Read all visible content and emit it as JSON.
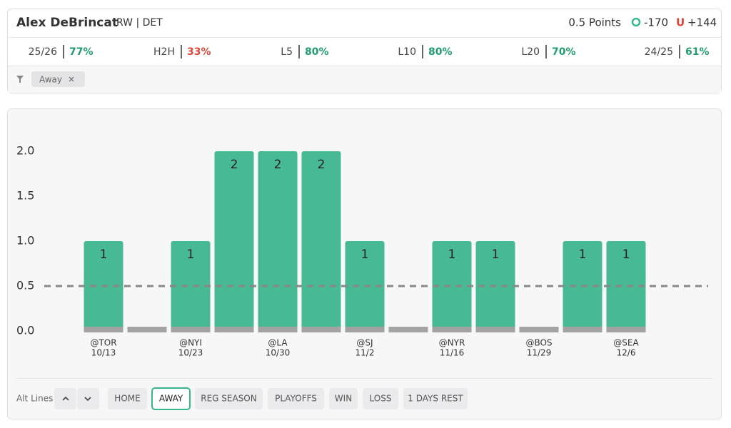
{
  "header": {
    "name": "Alex DeBrincat",
    "position_team": "RW | DET",
    "line": "0.5 Points",
    "over_icon": "O",
    "over_odds": "-170",
    "under_icon": "U",
    "under_odds": "+144"
  },
  "stats": [
    {
      "label": "25/26",
      "value": "77%",
      "color": "#1f9d6b"
    },
    {
      "label": "H2H",
      "value": "33%",
      "color": "#e0463c"
    },
    {
      "label": "L5",
      "value": "80%",
      "color": "#1f9d6b"
    },
    {
      "label": "L10",
      "value": "80%",
      "color": "#1f9d6b"
    },
    {
      "label": "L20",
      "value": "70%",
      "color": "#1f9d6b"
    },
    {
      "label": "24/25",
      "value": "61%",
      "color": "#1f9d6b"
    }
  ],
  "filters": [
    "Away"
  ],
  "chart": {
    "type": "bar",
    "categories": [
      "@TOR",
      null,
      "@NYI",
      null,
      "@LA",
      null,
      "@SJ",
      null,
      "@NYR",
      null,
      "@BOS",
      null,
      "@SEA"
    ],
    "dates": [
      "10/13",
      null,
      "10/23",
      null,
      "10/30",
      null,
      "11/2",
      null,
      "11/16",
      null,
      "11/29",
      null,
      "12/6"
    ],
    "values": [
      1,
      0,
      1,
      2,
      2,
      2,
      1,
      0,
      1,
      1,
      0,
      1,
      1
    ],
    "color": "#47b994",
    "ylim": [
      0,
      2
    ],
    "yticks": [
      {
        "value": 0,
        "label": "0.0"
      },
      0.5,
      {
        "value": 1,
        "label": "1.0"
      },
      1.5,
      {
        "value": 2,
        "label": "2.0"
      }
    ],
    "line_value": 0.5
  },
  "controls": {
    "alt_lines": "Alt Lines",
    "buttons": [
      "HOME",
      "AWAY",
      "REG SEASON",
      "PLAYOFFS",
      "WIN",
      "LOSS",
      "1 DAYS REST"
    ],
    "active_button": 1
  }
}
